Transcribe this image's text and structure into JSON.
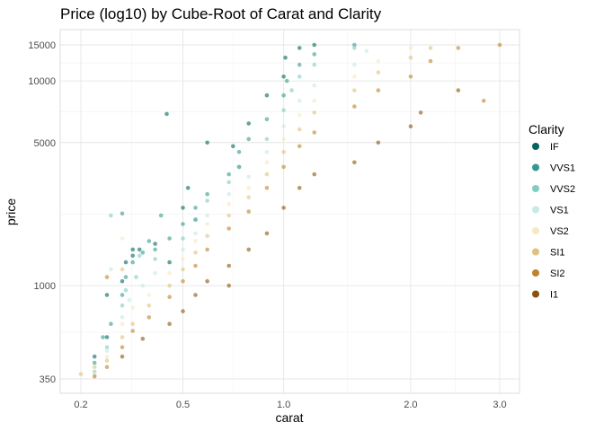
{
  "chart_data": {
    "type": "scatter",
    "title": "Price (log10) by Cube-Root of Carat and Clarity",
    "xlabel": "carat",
    "ylabel": "price",
    "x_scale": "cube-root",
    "y_scale": "log10",
    "xlim": [
      0.2,
      3.0
    ],
    "ylim": [
      350,
      15000
    ],
    "x_ticks": [
      0.2,
      0.5,
      1.0,
      2.0,
      3.0
    ],
    "x_tick_labels": [
      "0.2",
      "0.5",
      "1.0",
      "2.0",
      "3.0"
    ],
    "y_ticks": [
      350,
      1000,
      5000,
      10000,
      15000
    ],
    "y_tick_labels": [
      "350",
      "1000",
      "5000",
      "10000",
      "15000"
    ],
    "grid": true,
    "legend": {
      "title": "Clarity",
      "position": "right"
    },
    "series": [
      {
        "name": "IF",
        "color": "#01665e",
        "points": [
          [
            0.23,
            450
          ],
          [
            0.26,
            560
          ],
          [
            0.3,
            1050
          ],
          [
            0.31,
            1300
          ],
          [
            0.33,
            1400
          ],
          [
            0.35,
            1500
          ],
          [
            0.4,
            1600
          ],
          [
            0.5,
            2400
          ],
          [
            0.52,
            3000
          ],
          [
            0.6,
            5000
          ],
          [
            0.72,
            4800
          ],
          [
            0.8,
            6200
          ],
          [
            0.9,
            8500
          ],
          [
            1.0,
            10500
          ],
          [
            1.01,
            13000
          ],
          [
            1.1,
            14500
          ],
          [
            1.2,
            15000
          ],
          [
            0.55,
            2100
          ],
          [
            0.45,
            1300
          ],
          [
            0.75,
            3800
          ],
          [
            0.26,
            900
          ],
          [
            0.33,
            1500
          ],
          [
            0.44,
            6900
          ]
        ]
      },
      {
        "name": "VVS1",
        "color": "#35978f",
        "points": [
          [
            0.23,
            420
          ],
          [
            0.25,
            560
          ],
          [
            0.27,
            650
          ],
          [
            0.3,
            900
          ],
          [
            0.31,
            1100
          ],
          [
            0.33,
            1300
          ],
          [
            0.36,
            1450
          ],
          [
            0.4,
            1500
          ],
          [
            0.45,
            1700
          ],
          [
            0.5,
            2000
          ],
          [
            0.55,
            2400
          ],
          [
            0.6,
            2800
          ],
          [
            0.7,
            3500
          ],
          [
            0.75,
            4500
          ],
          [
            0.8,
            5200
          ],
          [
            0.9,
            6500
          ],
          [
            1.0,
            8500
          ],
          [
            1.02,
            10000
          ],
          [
            1.1,
            12000
          ],
          [
            1.2,
            13500
          ],
          [
            1.5,
            15000
          ],
          [
            0.38,
            1650
          ],
          [
            0.42,
            2200
          ],
          [
            0.3,
            2250
          ]
        ]
      },
      {
        "name": "VVS2",
        "color": "#80cdc1",
        "points": [
          [
            0.23,
            380
          ],
          [
            0.26,
            500
          ],
          [
            0.3,
            800
          ],
          [
            0.31,
            950
          ],
          [
            0.34,
            1100
          ],
          [
            0.4,
            1350
          ],
          [
            0.5,
            1700
          ],
          [
            0.55,
            2100
          ],
          [
            0.6,
            2600
          ],
          [
            0.7,
            3200
          ],
          [
            0.75,
            3800
          ],
          [
            0.9,
            5200
          ],
          [
            1.0,
            7200
          ],
          [
            1.05,
            9000
          ],
          [
            1.1,
            10500
          ],
          [
            1.2,
            12000
          ],
          [
            1.5,
            14500
          ],
          [
            0.27,
            2200
          ],
          [
            0.35,
            1400
          ]
        ]
      },
      {
        "name": "VS1",
        "color": "#c7eae5",
        "points": [
          [
            0.23,
            370
          ],
          [
            0.26,
            480
          ],
          [
            0.3,
            700
          ],
          [
            0.32,
            850
          ],
          [
            0.36,
            1000
          ],
          [
            0.4,
            1150
          ],
          [
            0.5,
            1500
          ],
          [
            0.55,
            1800
          ],
          [
            0.6,
            2200
          ],
          [
            0.7,
            2800
          ],
          [
            0.8,
            3400
          ],
          [
            0.9,
            4500
          ],
          [
            1.0,
            6000
          ],
          [
            1.1,
            8000
          ],
          [
            1.2,
            9500
          ],
          [
            1.5,
            12000
          ],
          [
            1.6,
            14000
          ],
          [
            0.27,
            1200
          ]
        ]
      },
      {
        "name": "VS2",
        "color": "#f6e8c3",
        "points": [
          [
            0.23,
            360
          ],
          [
            0.26,
            450
          ],
          [
            0.3,
            650
          ],
          [
            0.33,
            780
          ],
          [
            0.38,
            900
          ],
          [
            0.45,
            1150
          ],
          [
            0.5,
            1350
          ],
          [
            0.55,
            1650
          ],
          [
            0.6,
            2000
          ],
          [
            0.7,
            2500
          ],
          [
            0.8,
            3000
          ],
          [
            0.9,
            4000
          ],
          [
            1.0,
            5200
          ],
          [
            1.1,
            6800
          ],
          [
            1.2,
            8000
          ],
          [
            1.5,
            10500
          ],
          [
            1.7,
            12500
          ],
          [
            2.0,
            14500
          ],
          [
            0.3,
            1700
          ]
        ]
      },
      {
        "name": "SI1",
        "color": "#dfc27d",
        "points": [
          [
            0.2,
            370
          ],
          [
            0.23,
            400
          ],
          [
            0.26,
            430
          ],
          [
            0.3,
            560
          ],
          [
            0.33,
            650
          ],
          [
            0.38,
            800
          ],
          [
            0.45,
            1000
          ],
          [
            0.5,
            1200
          ],
          [
            0.55,
            1450
          ],
          [
            0.6,
            1750
          ],
          [
            0.7,
            2200
          ],
          [
            0.8,
            2700
          ],
          [
            0.9,
            3500
          ],
          [
            1.0,
            4500
          ],
          [
            1.1,
            5800
          ],
          [
            1.2,
            7000
          ],
          [
            1.5,
            9000
          ],
          [
            1.7,
            11000
          ],
          [
            2.0,
            13000
          ],
          [
            2.2,
            14500
          ],
          [
            0.3,
            1200
          ]
        ]
      },
      {
        "name": "SI2",
        "color": "#bf812d",
        "points": [
          [
            0.23,
            360
          ],
          [
            0.26,
            400
          ],
          [
            0.3,
            500
          ],
          [
            0.33,
            600
          ],
          [
            0.38,
            700
          ],
          [
            0.45,
            880
          ],
          [
            0.5,
            1050
          ],
          [
            0.55,
            1250
          ],
          [
            0.6,
            1500
          ],
          [
            0.7,
            1900
          ],
          [
            0.8,
            2300
          ],
          [
            0.9,
            3000
          ],
          [
            1.0,
            3800
          ],
          [
            1.1,
            4800
          ],
          [
            1.2,
            5600
          ],
          [
            1.5,
            7500
          ],
          [
            1.7,
            9000
          ],
          [
            2.0,
            10500
          ],
          [
            2.2,
            12500
          ],
          [
            2.5,
            14500
          ],
          [
            3.0,
            15000
          ],
          [
            2.8,
            8000
          ],
          [
            0.26,
            1100
          ]
        ]
      },
      {
        "name": "I1",
        "color": "#8c510a",
        "points": [
          [
            0.3,
            450
          ],
          [
            0.36,
            550
          ],
          [
            0.45,
            650
          ],
          [
            0.5,
            750
          ],
          [
            0.55,
            900
          ],
          [
            0.6,
            1050
          ],
          [
            0.7,
            1000
          ],
          [
            0.8,
            1500
          ],
          [
            0.9,
            1800
          ],
          [
            1.0,
            2400
          ],
          [
            1.1,
            3000
          ],
          [
            1.2,
            3500
          ],
          [
            1.5,
            4000
          ],
          [
            1.7,
            5000
          ],
          [
            2.0,
            6000
          ],
          [
            2.1,
            7000
          ],
          [
            2.5,
            9000
          ],
          [
            0.7,
            1250
          ]
        ]
      }
    ]
  }
}
